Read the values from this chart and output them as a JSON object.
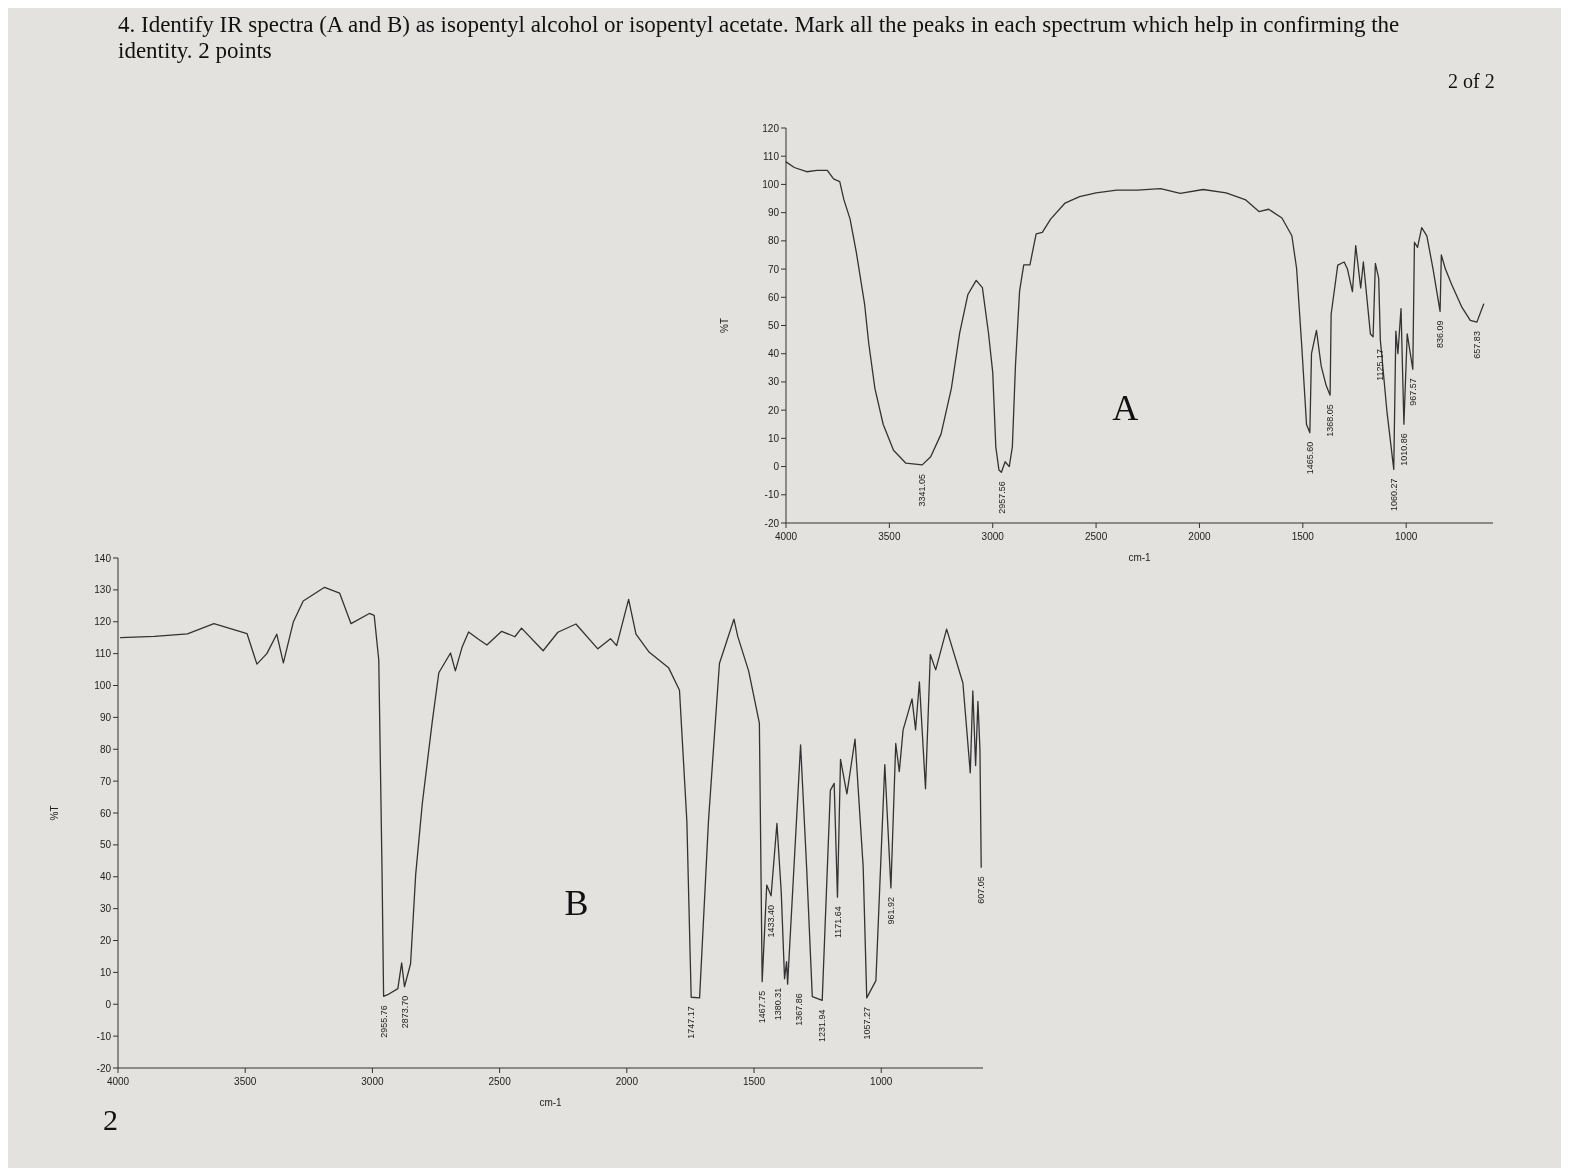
{
  "chart_data": [
    {
      "type": "line",
      "title": "4. Identify IR spectra (A and B) as isopentyl alcohol or isopentyl acetate. Mark all the peaks in each spectrum which help in confirming the identity.  2 points",
      "xlabel": "cm-1",
      "ylabel": "%T",
      "color": "#333333",
      "xlim": [
        4000,
        580
      ],
      "xticks": [
        4000,
        3500,
        3000,
        2500,
        2000,
        1500,
        1000
      ],
      "ylim": [
        -20,
        120
      ],
      "yticks": [
        -20,
        -10,
        0,
        10,
        20,
        30,
        40,
        50,
        60,
        70,
        80,
        90,
        100,
        110,
        120
      ],
      "x": [
        4000,
        3960,
        3900,
        3850,
        3800,
        3770,
        3740,
        3720,
        3690,
        3660,
        3620,
        3600,
        3570,
        3530,
        3480,
        3420,
        3341,
        3300,
        3250,
        3200,
        3160,
        3120,
        3080,
        3050,
        3020,
        3000,
        2985,
        2970,
        2958,
        2940,
        2920,
        2905,
        2890,
        2870,
        2850,
        2820,
        2790,
        2760,
        2720,
        2650,
        2580,
        2500,
        2400,
        2300,
        2188,
        2093,
        1982,
        1871,
        1776,
        1712,
        1665,
        1601,
        1553,
        1530,
        1506,
        1482,
        1466,
        1458,
        1434,
        1411,
        1387,
        1368,
        1363,
        1331,
        1300,
        1284,
        1260,
        1244,
        1220,
        1207,
        1173,
        1160,
        1149,
        1133,
        1125,
        1093,
        1060,
        1050,
        1040,
        1025,
        1011,
        995,
        968,
        960,
        945,
        925,
        900,
        870,
        836,
        830,
        810,
        780,
        730,
        690,
        658,
        625
      ],
      "values": [
        108,
        106,
        104.5,
        105,
        105,
        102,
        101,
        94.6,
        87.7,
        76,
        57.7,
        43.8,
        27.7,
        15,
        5.8,
        1.2,
        0.6,
        3.5,
        11.5,
        27.7,
        47.3,
        61,
        66,
        63.4,
        47,
        33.4,
        6.9,
        -1.2,
        -2,
        1.7,
        0,
        7,
        35.8,
        62.3,
        71.5,
        71.5,
        82.5,
        83,
        87.7,
        93.4,
        95.7,
        97,
        98,
        98,
        98.5,
        96.8,
        98.2,
        97,
        94.5,
        90.4,
        91.2,
        88.1,
        81.8,
        70.2,
        43.7,
        14.9,
        12,
        40,
        48.3,
        35.6,
        28.7,
        25.3,
        54,
        71.4,
        72.5,
        70,
        62,
        78.3,
        63.3,
        72.5,
        47,
        46,
        72,
        66.8,
        44.9,
        19.5,
        -1,
        48,
        40,
        56,
        15,
        47,
        34.5,
        79.5,
        77.7,
        84.7,
        81.8,
        70,
        55,
        75,
        70,
        64.5,
        56.4,
        51.8,
        51.2,
        57.6
      ],
      "annotations": [
        "A",
        "2 of 2",
        {
          "text": "3341.05",
          "x": 3341.05,
          "y": 0.6
        },
        {
          "text": "2957.56",
          "x": 2957.56,
          "y": -2
        },
        {
          "text": "1465.60",
          "x": 1465.6,
          "y": 12
        },
        {
          "text": "1368.05",
          "x": 1368.05,
          "y": 25.3
        },
        {
          "text": "1125.17",
          "x": 1125.17,
          "y": 44.9
        },
        {
          "text": "1060.27",
          "x": 1060.27,
          "y": -1
        },
        {
          "text": "1010.86",
          "x": 1010.86,
          "y": 15
        },
        {
          "text": "967.57",
          "x": 967.57,
          "y": 34.5
        },
        {
          "text": "836.09",
          "x": 836.09,
          "y": 55
        },
        {
          "text": "657.83",
          "x": 657.83,
          "y": 51.2
        }
      ]
    },
    {
      "type": "line",
      "xlabel": "cm-1",
      "ylabel": "%T",
      "color": "#333333",
      "xlim": [
        4000,
        600
      ],
      "xticks": [
        4000,
        3500,
        3000,
        2500,
        2000,
        1500,
        1000
      ],
      "ylim": [
        -20,
        140
      ],
      "yticks": [
        -20,
        -10,
        0,
        10,
        20,
        30,
        40,
        50,
        60,
        70,
        80,
        90,
        100,
        110,
        120,
        130,
        140
      ],
      "x": [
        3990,
        3857,
        3727,
        3623,
        3493,
        3454,
        3415,
        3376,
        3350,
        3311,
        3272,
        3188,
        3129,
        3084,
        3012,
        2993,
        2975,
        2962,
        2956,
        2940,
        2900,
        2885,
        2874,
        2850,
        2830,
        2804,
        2765,
        2739,
        2693,
        2674,
        2648,
        2622,
        2583,
        2550,
        2492,
        2440,
        2414,
        2329,
        2271,
        2200,
        2114,
        2064,
        2040,
        1993,
        1964,
        1914,
        1836,
        1793,
        1764,
        1747,
        1714,
        1679,
        1636,
        1579,
        1564,
        1521,
        1479,
        1468,
        1450,
        1433,
        1410,
        1393,
        1380,
        1372,
        1368,
        1317,
        1293,
        1271,
        1232,
        1200,
        1185,
        1172,
        1160,
        1135,
        1103,
        1071,
        1057,
        1021,
        986,
        962,
        943,
        929,
        914,
        879,
        865,
        850,
        826,
        807,
        786,
        743,
        679,
        650,
        640,
        629,
        620,
        612,
        607
      ],
      "values": [
        115,
        115.4,
        116.2,
        119.4,
        116.3,
        106.7,
        110,
        116.1,
        107.1,
        119.9,
        126.5,
        130.8,
        129,
        119.4,
        122.6,
        122,
        108,
        40.8,
        2.5,
        3,
        4.9,
        13,
        5.5,
        12.7,
        40.6,
        62.9,
        88.5,
        104,
        110.2,
        104.6,
        111.9,
        116.8,
        114.5,
        112.7,
        117,
        115.3,
        118,
        110.9,
        116.7,
        119.3,
        111.5,
        114.7,
        112.5,
        127,
        116.1,
        110.6,
        105.6,
        98.5,
        57.4,
        2.2,
        2,
        57.6,
        106.9,
        120.8,
        115.4,
        104.5,
        88.2,
        7.1,
        37.4,
        34,
        56.7,
        35.1,
        8,
        13.4,
        6.3,
        81.4,
        42.5,
        2.4,
        1.2,
        67.1,
        69.3,
        33.6,
        76.8,
        66,
        83.2,
        43.1,
        2,
        7.4,
        75.2,
        36.5,
        81.8,
        73,
        86.1,
        95.8,
        86.1,
        101.1,
        67.6,
        109.7,
        104.9,
        117.7,
        100.8,
        72.6,
        98.3,
        74.9,
        95,
        80,
        43
      ],
      "annotations": [
        "B",
        "2",
        {
          "text": "2955.76",
          "x": 2955.76,
          "y": 2.5
        },
        {
          "text": "2873.70",
          "x": 2873.7,
          "y": 5.5
        },
        {
          "text": "1747.17",
          "x": 1747.17,
          "y": 2.2
        },
        {
          "text": "1467.75",
          "x": 1467.75,
          "y": 7.1
        },
        {
          "text": "1433.40",
          "x": 1433.4,
          "y": 34
        },
        {
          "text": "1380.31",
          "x": 1380.31,
          "y": 8
        },
        {
          "text": "1367.86",
          "x": 1367.86,
          "y": 6.3
        },
        {
          "text": "1231.94",
          "x": 1231.94,
          "y": 1.2
        },
        {
          "text": "1171.64",
          "x": 1171.64,
          "y": 33.6
        },
        {
          "text": "1057.27",
          "x": 1057.27,
          "y": 2
        },
        {
          "text": "961.92",
          "x": 961.92,
          "y": 36.5
        },
        {
          "text": "607.05",
          "x": 607.05,
          "y": 43
        }
      ]
    }
  ]
}
